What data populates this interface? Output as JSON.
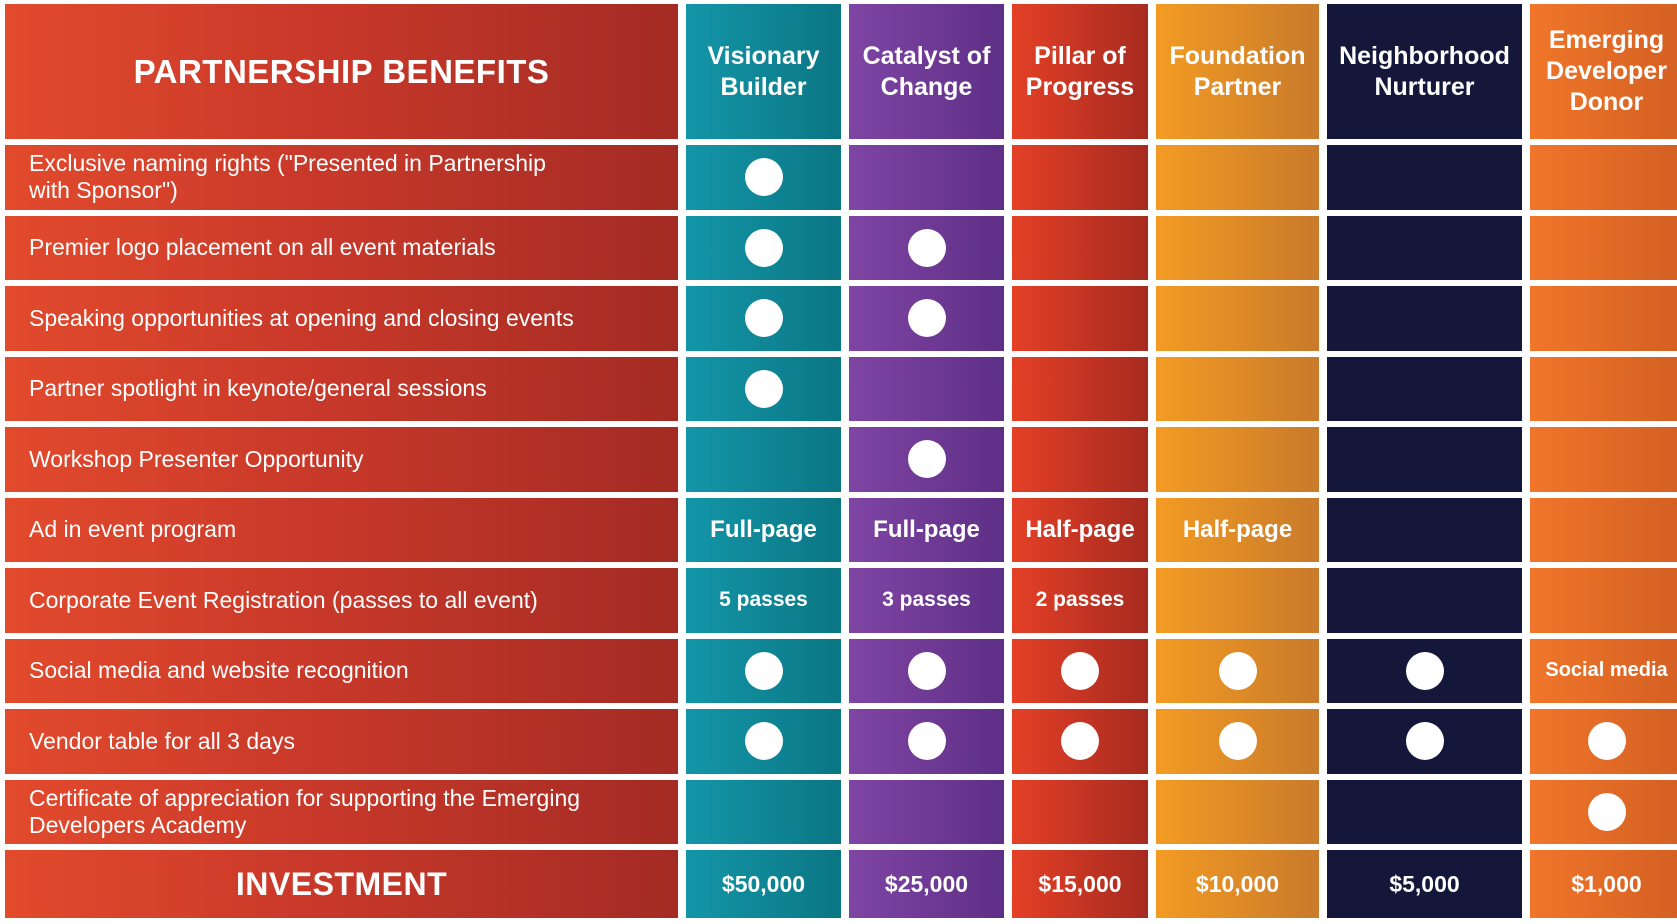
{
  "header": {
    "title": "PARTNERSHIP BENEFITS",
    "tiers": [
      "Visionary Builder",
      "Catalyst of Change",
      "Pillar of Progress",
      "Foundation Partner",
      "Neighborhood Nurturer",
      "Emerging Developer Donor"
    ]
  },
  "colors": {
    "benefits_column": "#c9392a",
    "visionary_builder": "#1396a8",
    "catalyst_of_change": "#7f45a4",
    "pillar_of_progress": "#e44026",
    "foundation_partner": "#f39b23",
    "neighborhood_nurturer": "#14163a",
    "emerging_developer_donor": "#f0762a",
    "check_dot": "#ffffff"
  },
  "icons": {
    "included_marker": "white-dot"
  },
  "rows": [
    {
      "benefit": "Exclusive naming rights (\"Presented in Partnership with Sponsor\")",
      "cells": [
        true,
        null,
        null,
        null,
        null,
        null
      ]
    },
    {
      "benefit": "Premier logo placement on all event materials",
      "cells": [
        true,
        true,
        null,
        null,
        null,
        null
      ]
    },
    {
      "benefit": "Speaking opportunities at opening and closing events",
      "cells": [
        true,
        true,
        null,
        null,
        null,
        null
      ]
    },
    {
      "benefit": "Partner spotlight in keynote/general sessions",
      "cells": [
        true,
        null,
        null,
        null,
        null,
        null
      ]
    },
    {
      "benefit": "Workshop Presenter Opportunity",
      "cells": [
        null,
        true,
        null,
        null,
        null,
        null
      ]
    },
    {
      "benefit": "Ad in event program",
      "cells": [
        "Full-page",
        "Full-page",
        "Half-page",
        "Half-page",
        null,
        null
      ]
    },
    {
      "benefit": "Corporate Event Registration  (passes to all event)",
      "cells": [
        "5 passes",
        "3 passes",
        "2 passes",
        null,
        null,
        null
      ]
    },
    {
      "benefit": "Social media and website recognition",
      "cells": [
        true,
        true,
        true,
        true,
        true,
        "Social media"
      ]
    },
    {
      "benefit": "Vendor table for all 3 days",
      "cells": [
        true,
        true,
        true,
        true,
        true,
        true
      ]
    },
    {
      "benefit": "Certificate of appreciation for supporting the Emerging Developers Academy",
      "cells": [
        null,
        null,
        null,
        null,
        null,
        true
      ]
    }
  ],
  "investment": {
    "label": "INVESTMENT",
    "prices": [
      "$50,000",
      "$25,000",
      "$15,000",
      "$10,000",
      "$5,000",
      "$1,000"
    ]
  }
}
